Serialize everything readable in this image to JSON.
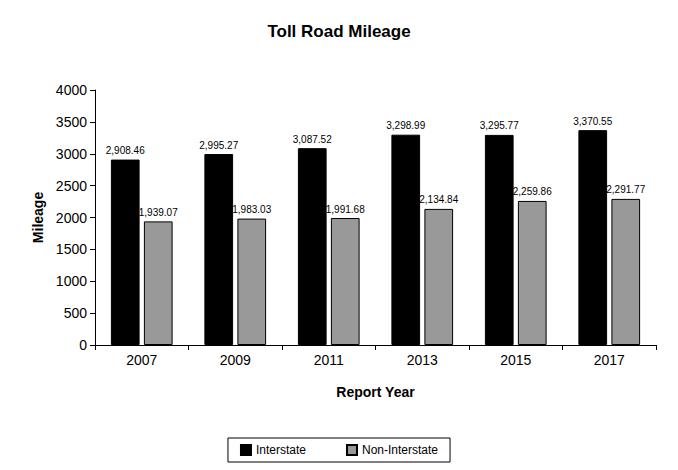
{
  "chart_data": {
    "type": "bar",
    "title": "Toll Road Mileage",
    "x_label": "Report Year",
    "y_label": "Mileage",
    "categories": [
      "2007",
      "2009",
      "2011",
      "2013",
      "2015",
      "2017"
    ],
    "series": [
      {
        "name": "Interstate",
        "color": "#000000",
        "values": [
          2908.46,
          2995.27,
          3087.52,
          3298.99,
          3295.77,
          3370.55
        ],
        "value_labels": [
          "2,908.46",
          "2,995.27",
          "3,087.52",
          "3,298.99",
          "3,295.77",
          "3,370.55"
        ]
      },
      {
        "name": "Non-Interstate",
        "color": "#999999",
        "values": [
          1939.07,
          1983.03,
          1991.68,
          2134.84,
          2259.86,
          2291.77
        ],
        "value_labels": [
          "1,939.07",
          "1,983.03",
          "1,991.68",
          "2,134.84",
          "2,259.86",
          "2,291.77"
        ]
      }
    ],
    "ylim": [
      0,
      4000
    ],
    "yticks": [
      0,
      500,
      1000,
      1500,
      2000,
      2500,
      3000,
      3500,
      4000
    ],
    "grid": false,
    "legend": "bottom",
    "data_labels": true
  }
}
